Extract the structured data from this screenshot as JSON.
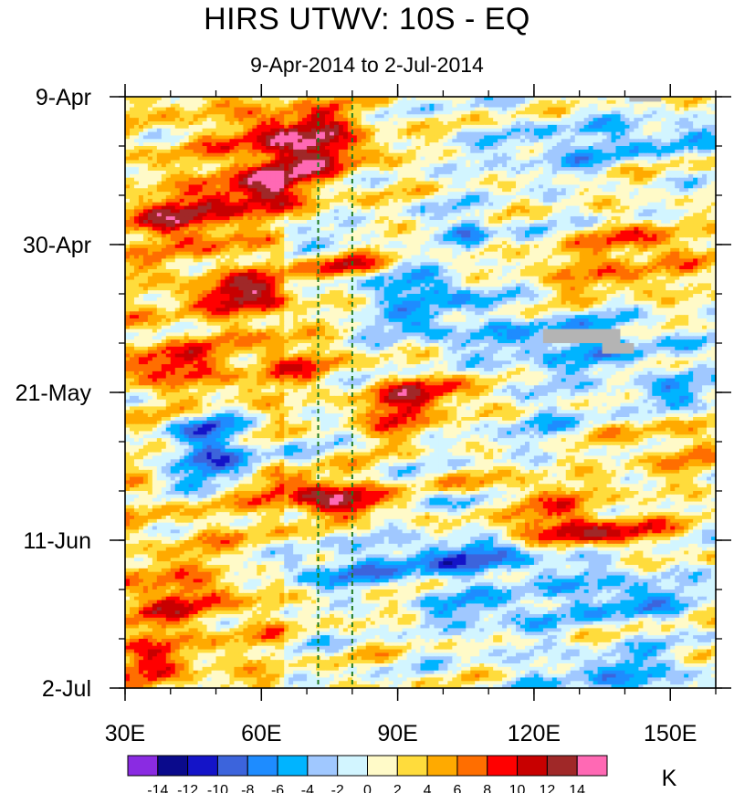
{
  "chart_data": {
    "type": "heatmap",
    "title": "HIRS UTWV: 10S - EQ",
    "subtitle": "9-Apr-2014 to 2-Jul-2014",
    "x": {
      "label": "",
      "range": [
        30,
        160
      ],
      "major_ticks": [
        30,
        60,
        90,
        120,
        150
      ],
      "tick_labels": [
        "30E",
        "60E",
        "90E",
        "120E",
        "150E"
      ],
      "minor_step": 10
    },
    "y": {
      "label": "",
      "range_days": [
        0,
        84
      ],
      "major_ticks": [
        0,
        21,
        42,
        63,
        84
      ],
      "tick_labels": [
        "9-Apr",
        "30-Apr",
        "21-May",
        "11-Jun",
        "2-Jul"
      ],
      "minor_step": 7,
      "direction": "time increases downward"
    },
    "reference_lines": {
      "style": "dashed",
      "color": "#1f7a1f",
      "x_values": [
        72.5,
        80
      ]
    },
    "colorbar": {
      "units": "K",
      "levels": [
        -14,
        -12,
        -10,
        -8,
        -6,
        -4,
        -2,
        0,
        2,
        4,
        6,
        8,
        10,
        12,
        14
      ],
      "level_labels": [
        "-14",
        "-12",
        "-10",
        "-8",
        "-6",
        "-4",
        "-2",
        "0",
        "2",
        "4",
        "6",
        "8",
        "10",
        "12",
        "14"
      ],
      "colors": [
        "#8a2be2",
        "#0a0a8c",
        "#1414c8",
        "#3c64dc",
        "#1e8cff",
        "#00b4ff",
        "#a0c8ff",
        "#d2f5ff",
        "#fffac8",
        "#ffdc3c",
        "#ffaa00",
        "#ff6e00",
        "#ff0000",
        "#c80000",
        "#a02828",
        "#ff69b4"
      ]
    },
    "missing_color": "#b4b4b4",
    "missing_regions": [
      {
        "lon": [
          122,
          139
        ],
        "day": [
          33,
          35
        ]
      },
      {
        "lon": [
          135,
          142
        ],
        "day": [
          35,
          36.5
        ]
      },
      {
        "lon": [
          141,
          148
        ],
        "day": [
          0,
          0.7
        ]
      }
    ],
    "anomaly_features": [
      {
        "lon": 70,
        "day": 6.5,
        "sx": 9,
        "sy": 3.5,
        "amp": 13
      },
      {
        "lon": 61,
        "day": 13,
        "sx": 7,
        "sy": 2.5,
        "amp": 9
      },
      {
        "lon": 45,
        "day": 17.5,
        "sx": 10,
        "sy": 2.5,
        "amp": 8.5
      },
      {
        "lon": 57,
        "day": 28,
        "sx": 8,
        "sy": 2,
        "amp": 9.5
      },
      {
        "lon": 40,
        "day": 38,
        "sx": 8,
        "sy": 2,
        "amp": 7
      },
      {
        "lon": 67,
        "day": 37.5,
        "sx": 6,
        "sy": 2.5,
        "amp": 6
      },
      {
        "lon": 78,
        "day": 24,
        "sx": 6,
        "sy": 1.3,
        "amp": 8
      },
      {
        "lon": 98,
        "day": 42.5,
        "sx": 10,
        "sy": 2,
        "amp": 9
      },
      {
        "lon": 90,
        "day": 46,
        "sx": 5,
        "sy": 2,
        "amp": 7
      },
      {
        "lon": 68,
        "day": 56,
        "sx": 8,
        "sy": 2,
        "amp": 9
      },
      {
        "lon": 80,
        "day": 57.5,
        "sx": 7,
        "sy": 1.5,
        "amp": 8
      },
      {
        "lon": 115,
        "day": 56.5,
        "sx": 12,
        "sy": 2,
        "amp": 6
      },
      {
        "lon": 130,
        "day": 61.5,
        "sx": 12,
        "sy": 1.6,
        "amp": 11
      },
      {
        "lon": 40,
        "day": 71,
        "sx": 10,
        "sy": 3,
        "amp": 5
      },
      {
        "lon": 135,
        "day": 25,
        "sx": 14,
        "sy": 2.5,
        "amp": 5
      },
      {
        "lon": 145,
        "day": 20.5,
        "sx": 7,
        "sy": 1.5,
        "amp": 7
      },
      {
        "lon": 150,
        "day": 50,
        "sx": 8,
        "sy": 3,
        "amp": 4
      },
      {
        "lon": 36,
        "day": 80,
        "sx": 6,
        "sy": 3,
        "amp": 5
      },
      {
        "lon": 50,
        "day": 52,
        "sx": 9,
        "sy": 3,
        "amp": -10
      },
      {
        "lon": 48,
        "day": 47,
        "sx": 6,
        "sy": 2,
        "amp": -7
      },
      {
        "lon": 95,
        "day": 27.5,
        "sx": 10,
        "sy": 1.6,
        "amp": -8
      },
      {
        "lon": 106,
        "day": 19,
        "sx": 3,
        "sy": 1.5,
        "amp": -9
      },
      {
        "lon": 95,
        "day": 32.5,
        "sx": 8,
        "sy": 1.5,
        "amp": -6
      },
      {
        "lon": 130,
        "day": 35,
        "sx": 15,
        "sy": 3,
        "amp": -6
      },
      {
        "lon": 105,
        "day": 65.5,
        "sx": 14,
        "sy": 2,
        "amp": -8
      },
      {
        "lon": 75,
        "day": 67.5,
        "sx": 12,
        "sy": 1.6,
        "amp": -6
      },
      {
        "lon": 140,
        "day": 71,
        "sx": 10,
        "sy": 2.5,
        "amp": -7
      },
      {
        "lon": 140,
        "day": 82,
        "sx": 12,
        "sy": 2.5,
        "amp": -6
      },
      {
        "lon": 110,
        "day": 73,
        "sx": 10,
        "sy": 2,
        "amp": -5
      },
      {
        "lon": 145,
        "day": 5.5,
        "sx": 12,
        "sy": 2,
        "amp": -5
      },
      {
        "lon": 125,
        "day": 8,
        "sx": 10,
        "sy": 2,
        "amp": -4
      },
      {
        "lon": 105,
        "day": 57.5,
        "sx": 6,
        "sy": 1.3,
        "amp": -7
      },
      {
        "lon": 65,
        "day": 19,
        "sx": 10,
        "sy": 1.3,
        "amp": -4
      },
      {
        "lon": 150,
        "day": 42,
        "sx": 8,
        "sy": 2,
        "amp": -5
      },
      {
        "lon": 118,
        "day": 45,
        "sx": 10,
        "sy": 3,
        "amp": -3
      }
    ]
  }
}
